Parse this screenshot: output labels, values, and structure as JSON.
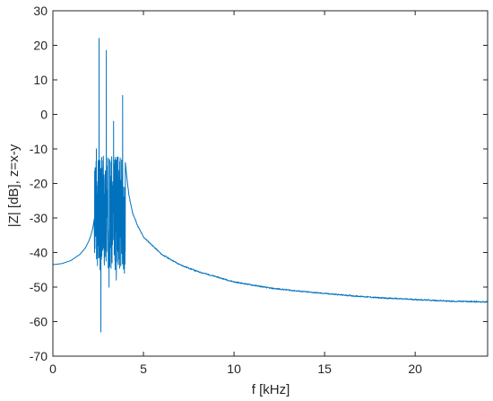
{
  "chart_data": {
    "type": "line",
    "title": "",
    "xlabel": "f [kHz]",
    "ylabel": "|Z| [dB], z=x-y",
    "xlim": [
      0,
      24
    ],
    "ylim": [
      -70,
      30
    ],
    "xticks": [
      0,
      5,
      10,
      15,
      20
    ],
    "yticks": [
      -70,
      -60,
      -50,
      -40,
      -30,
      -20,
      -10,
      0,
      10,
      20,
      30
    ],
    "grid": false,
    "box": true,
    "colors": {
      "line": "#0072BD",
      "axes": "#262626",
      "background": "#ffffff"
    },
    "series": [
      {
        "x": [
          0,
          0.5,
          1.0,
          1.5,
          1.8,
          2.0,
          2.1,
          2.2,
          2.25,
          2.3,
          4.0,
          4.1,
          4.2,
          4.4,
          4.7,
          5.0,
          6.0,
          7.0,
          8.0,
          9.0,
          10.0,
          12.0,
          14.0,
          16.0,
          18.0,
          20.0,
          22.0,
          24.0
        ],
        "y": [
          -43.5,
          -43.2,
          -42.3,
          -40.5,
          -38.6,
          -36.5,
          -35.0,
          -33.0,
          -31.5,
          -29.5,
          -14.0,
          -19.0,
          -23.5,
          -28.5,
          -32.5,
          -35.5,
          -40.5,
          -43.5,
          -45.5,
          -47.0,
          -48.5,
          -50.3,
          -51.4,
          -52.3,
          -53.1,
          -53.6,
          -54.1,
          -54.3
        ]
      }
    ],
    "resonance_band": {
      "x_range": [
        2.3,
        4.0
      ],
      "typical_y_range": [
        -45,
        -12
      ],
      "peaks": [
        {
          "x": 2.4,
          "y": -10
        },
        {
          "x": 2.55,
          "y": 22
        },
        {
          "x": 2.65,
          "y": -63
        },
        {
          "x": 2.95,
          "y": 18.5
        },
        {
          "x": 3.1,
          "y": -50
        },
        {
          "x": 3.35,
          "y": -2
        },
        {
          "x": 3.5,
          "y": -48
        },
        {
          "x": 3.85,
          "y": 5.5
        },
        {
          "x": 3.95,
          "y": -46
        }
      ]
    }
  }
}
